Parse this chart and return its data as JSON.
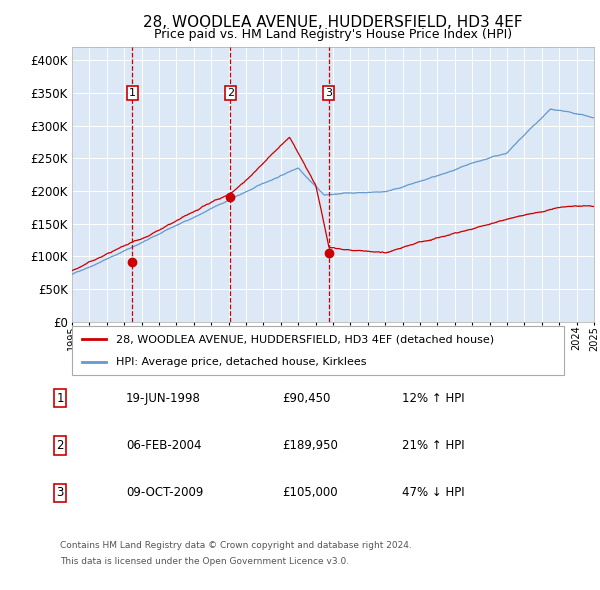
{
  "title": "28, WOODLEA AVENUE, HUDDERSFIELD, HD3 4EF",
  "subtitle": "Price paid vs. HM Land Registry's House Price Index (HPI)",
  "fig_bg_color": "#ffffff",
  "plot_bg_color": "#dce8f5",
  "legend_label_red": "28, WOODLEA AVENUE, HUDDERSFIELD, HD3 4EF (detached house)",
  "legend_label_blue": "HPI: Average price, detached house, Kirklees",
  "footer_line1": "Contains HM Land Registry data © Crown copyright and database right 2024.",
  "footer_line2": "This data is licensed under the Open Government Licence v3.0.",
  "transactions": [
    {
      "num": "1",
      "date": "19-JUN-1998",
      "price": "£90,450",
      "pct": "12% ↑ HPI",
      "year": 1998.46,
      "price_val": 90450
    },
    {
      "num": "2",
      "date": "06-FEB-2004",
      "price": "£189,950",
      "pct": "21% ↑ HPI",
      "year": 2004.1,
      "price_val": 189950
    },
    {
      "num": "3",
      "date": "09-OCT-2009",
      "price": "£105,000",
      "pct": "47% ↓ HPI",
      "year": 2009.77,
      "price_val": 105000
    }
  ],
  "ylim": [
    0,
    420000
  ],
  "yticks": [
    0,
    50000,
    100000,
    150000,
    200000,
    250000,
    300000,
    350000,
    400000
  ],
  "ytick_labels": [
    "£0",
    "£50K",
    "£100K",
    "£150K",
    "£200K",
    "£250K",
    "£300K",
    "£350K",
    "£400K"
  ],
  "red_color": "#cc0000",
  "blue_color": "#6699cc",
  "grid_color": "#ffffff",
  "year_start": 1995,
  "year_end": 2025,
  "hpi_seed": 42,
  "hpi_base": 72000,
  "prop_base": 78000
}
